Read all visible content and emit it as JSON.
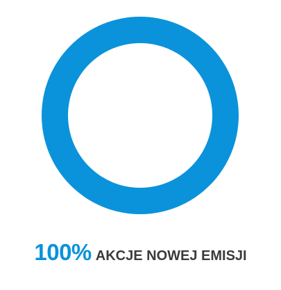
{
  "chart_data": {
    "type": "pie",
    "style": "donut",
    "slices": [
      {
        "label": "AKCJE NOWEJ EMISJI",
        "value": 100,
        "value_label": "100%"
      }
    ],
    "colors": {
      "ring": "#0a93da",
      "percent_text": "#0a93da",
      "label_text": "#3b3b3b"
    }
  }
}
